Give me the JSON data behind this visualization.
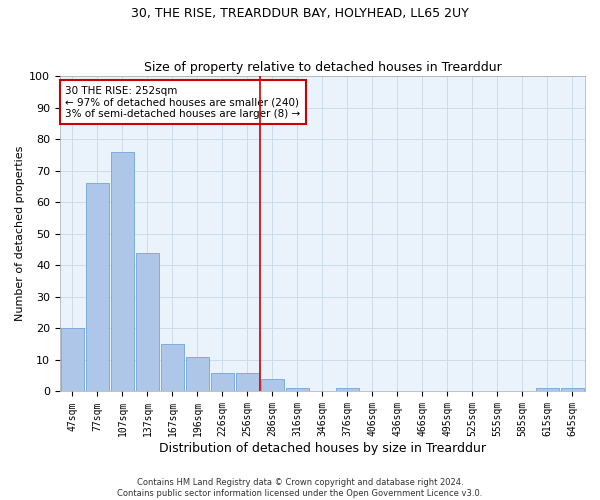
{
  "title": "30, THE RISE, TREARDDUR BAY, HOLYHEAD, LL65 2UY",
  "subtitle": "Size of property relative to detached houses in Trearddur",
  "xlabel": "Distribution of detached houses by size in Trearddur",
  "ylabel": "Number of detached properties",
  "footer_line1": "Contains HM Land Registry data © Crown copyright and database right 2024.",
  "footer_line2": "Contains public sector information licensed under the Open Government Licence v3.0.",
  "bin_labels": [
    "47sqm",
    "77sqm",
    "107sqm",
    "137sqm",
    "167sqm",
    "196sqm",
    "226sqm",
    "256sqm",
    "286sqm",
    "316sqm",
    "346sqm",
    "376sqm",
    "406sqm",
    "436sqm",
    "466sqm",
    "495sqm",
    "525sqm",
    "555sqm",
    "585sqm",
    "615sqm",
    "645sqm"
  ],
  "bar_heights": [
    20,
    66,
    76,
    44,
    15,
    11,
    6,
    6,
    4,
    1,
    0,
    1,
    0,
    0,
    0,
    0,
    0,
    0,
    0,
    1,
    1
  ],
  "bar_color": "#aec6e8",
  "bar_edge_color": "#5b9bd5",
  "grid_color": "#c8d8e8",
  "background_color": "#eaf2fb",
  "annotation_line1": "30 THE RISE: 252sqm",
  "annotation_line2": "← 97% of detached houses are smaller (240)",
  "annotation_line3": "3% of semi-detached houses are larger (8) →",
  "annotation_box_color": "#ffffff",
  "annotation_box_edge": "#cc0000",
  "vline_index": 7.5,
  "vline_color": "#cc0000",
  "ylim": [
    0,
    100
  ],
  "yticks": [
    0,
    10,
    20,
    30,
    40,
    50,
    60,
    70,
    80,
    90,
    100
  ],
  "title_fontsize": 9,
  "subtitle_fontsize": 9,
  "tick_fontsize": 7,
  "ylabel_fontsize": 8,
  "xlabel_fontsize": 9
}
